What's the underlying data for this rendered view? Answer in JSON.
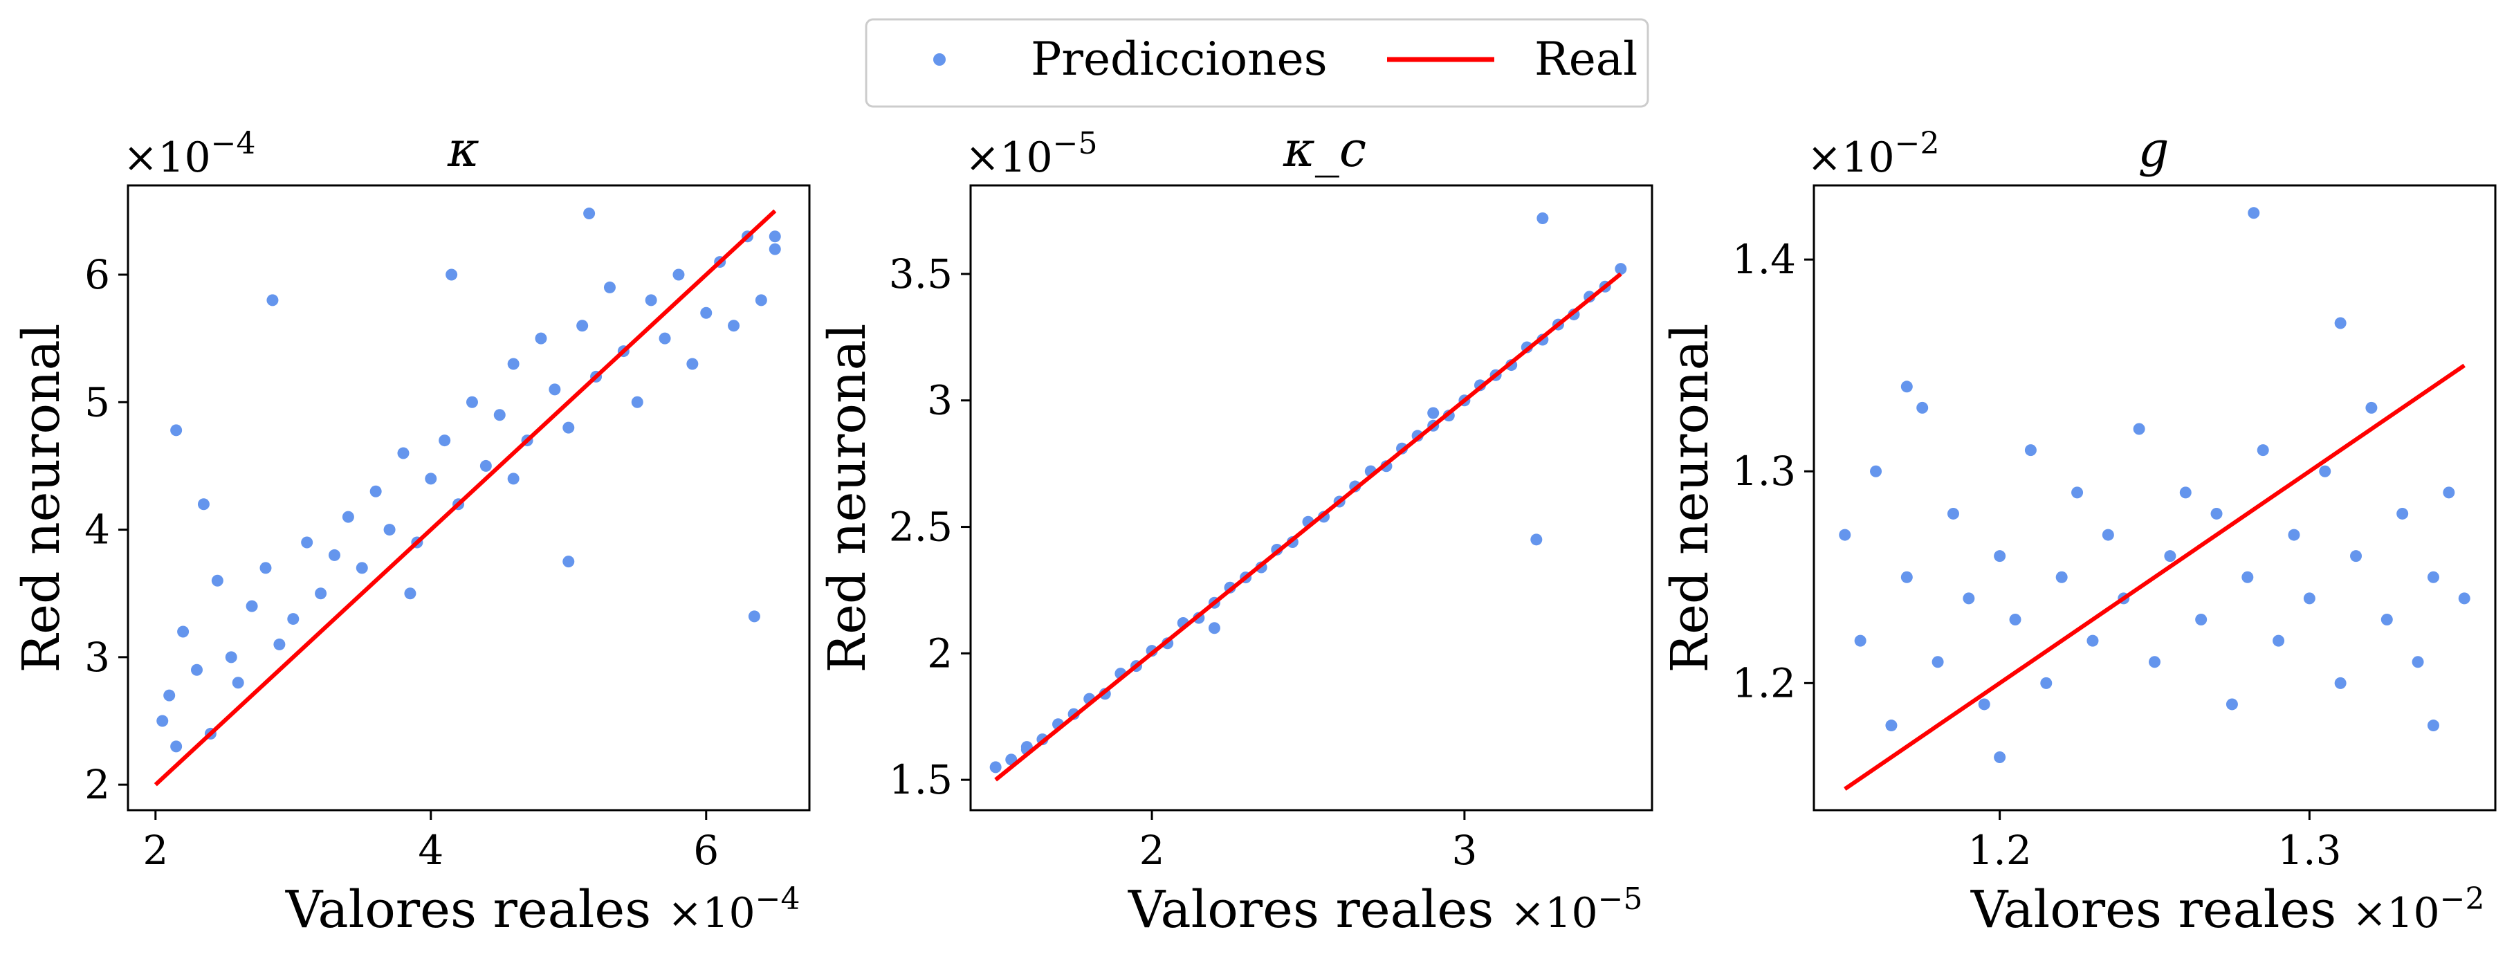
{
  "legend": {
    "entries": [
      {
        "label": "Predicciones",
        "kind": "marker",
        "color": "#6495ed"
      },
      {
        "label": "Real",
        "kind": "line",
        "color": "#ff0000"
      }
    ],
    "position": "top-center"
  },
  "chart_data": [
    {
      "type": "scatter",
      "title": "κ",
      "xlabel": "Valores reales",
      "ylabel": "Red neuronal",
      "x_offset_label": "×10",
      "x_offset_exp": "−4",
      "y_offset_label": "×10",
      "y_offset_exp": "−4",
      "xlim": [
        1.8,
        6.75
      ],
      "ylim": [
        1.8,
        6.7
      ],
      "xticks": [
        2,
        4,
        6
      ],
      "yticks": [
        2,
        3,
        4,
        5,
        6
      ],
      "grid": false,
      "series": [
        {
          "name": "Predicciones",
          "kind": "scatter",
          "color": "#6495ed",
          "x": [
            2.05,
            2.1,
            2.15,
            2.2,
            2.3,
            2.4,
            2.45,
            2.55,
            2.6,
            2.7,
            2.8,
            2.9,
            3.0,
            3.1,
            3.2,
            3.3,
            3.4,
            3.5,
            3.6,
            3.7,
            3.8,
            3.9,
            4.0,
            4.1,
            4.2,
            4.3,
            4.4,
            4.5,
            4.6,
            4.7,
            4.8,
            4.9,
            5.0,
            5.1,
            5.2,
            5.3,
            5.4,
            5.5,
            5.6,
            5.7,
            5.8,
            5.9,
            6.0,
            6.1,
            6.2,
            6.3,
            6.4,
            6.5,
            2.15,
            2.35,
            2.85,
            4.15,
            5.15,
            6.35,
            5.0,
            6.5,
            4.6,
            3.85
          ],
          "y": [
            2.5,
            2.7,
            2.3,
            3.2,
            2.9,
            2.4,
            3.6,
            3.0,
            2.8,
            3.4,
            3.7,
            3.1,
            3.3,
            3.9,
            3.5,
            3.8,
            4.1,
            3.7,
            4.3,
            4.0,
            4.6,
            3.9,
            4.4,
            4.7,
            4.2,
            5.0,
            4.5,
            4.9,
            5.3,
            4.7,
            5.5,
            5.1,
            4.8,
            5.6,
            5.2,
            5.9,
            5.4,
            5.0,
            5.8,
            5.5,
            6.0,
            5.3,
            5.7,
            6.1,
            5.6,
            6.3,
            5.8,
            6.2,
            4.78,
            4.2,
            5.8,
            6.0,
            6.48,
            3.32,
            3.75,
            6.3,
            4.4,
            3.5
          ]
        },
        {
          "name": "Real",
          "kind": "line",
          "color": "#ff0000",
          "x": [
            2.0,
            6.5
          ],
          "y": [
            2.0,
            6.5
          ]
        }
      ]
    },
    {
      "type": "scatter",
      "title": "κ_c",
      "xlabel": "Valores reales",
      "ylabel": "Red neuronal",
      "x_offset_label": "×10",
      "x_offset_exp": "−5",
      "y_offset_label": "×10",
      "y_offset_exp": "−5",
      "xlim": [
        1.42,
        3.6
      ],
      "ylim": [
        1.38,
        3.85
      ],
      "xticks": [
        2,
        3
      ],
      "yticks": [
        1.5,
        2.0,
        2.5,
        3.0,
        3.5
      ],
      "grid": false,
      "series": [
        {
          "name": "Predicciones",
          "kind": "scatter",
          "color": "#6495ed",
          "x": [
            1.5,
            1.55,
            1.6,
            1.65,
            1.7,
            1.75,
            1.8,
            1.85,
            1.9,
            1.95,
            2.0,
            2.05,
            2.1,
            2.15,
            2.2,
            2.25,
            2.3,
            2.35,
            2.4,
            2.45,
            2.5,
            2.55,
            2.6,
            2.65,
            2.7,
            2.75,
            2.8,
            2.85,
            2.9,
            2.95,
            3.0,
            3.05,
            3.1,
            3.15,
            3.2,
            3.25,
            3.3,
            3.35,
            3.4,
            3.45,
            3.5,
            3.25,
            3.23,
            1.6,
            2.2,
            2.9
          ],
          "y": [
            1.55,
            1.58,
            1.62,
            1.66,
            1.72,
            1.76,
            1.82,
            1.84,
            1.92,
            1.95,
            2.01,
            2.04,
            2.12,
            2.14,
            2.2,
            2.26,
            2.3,
            2.34,
            2.41,
            2.44,
            2.52,
            2.54,
            2.6,
            2.66,
            2.72,
            2.74,
            2.81,
            2.86,
            2.9,
            2.94,
            3.0,
            3.06,
            3.1,
            3.14,
            3.21,
            3.24,
            3.3,
            3.34,
            3.41,
            3.45,
            3.52,
            3.72,
            2.45,
            1.63,
            2.1,
            2.95
          ]
        },
        {
          "name": "Real",
          "kind": "line",
          "color": "#ff0000",
          "x": [
            1.5,
            3.5
          ],
          "y": [
            1.5,
            3.5
          ]
        }
      ]
    },
    {
      "type": "scatter",
      "title": "g",
      "xlabel": "Valores reales",
      "ylabel": "Red neuronal",
      "x_offset_label": "×10",
      "x_offset_exp": "−2",
      "y_offset_label": "×10",
      "y_offset_exp": "−2",
      "xlim": [
        1.14,
        1.36
      ],
      "ylim": [
        1.14,
        1.435
      ],
      "xticks": [
        1.2,
        1.3
      ],
      "yticks": [
        1.2,
        1.3,
        1.4
      ],
      "grid": false,
      "series": [
        {
          "name": "Predicciones",
          "kind": "scatter",
          "color": "#6495ed",
          "x": [
            1.15,
            1.155,
            1.16,
            1.165,
            1.17,
            1.175,
            1.18,
            1.185,
            1.19,
            1.195,
            1.2,
            1.205,
            1.21,
            1.215,
            1.22,
            1.225,
            1.23,
            1.235,
            1.24,
            1.245,
            1.25,
            1.255,
            1.26,
            1.265,
            1.27,
            1.275,
            1.28,
            1.285,
            1.29,
            1.295,
            1.3,
            1.305,
            1.31,
            1.315,
            1.32,
            1.325,
            1.33,
            1.335,
            1.34,
            1.345,
            1.35,
            1.282,
            1.17,
            1.2,
            1.31,
            1.34
          ],
          "y": [
            1.27,
            1.22,
            1.3,
            1.18,
            1.25,
            1.33,
            1.21,
            1.28,
            1.24,
            1.19,
            1.26,
            1.23,
            1.31,
            1.2,
            1.25,
            1.29,
            1.22,
            1.27,
            1.24,
            1.32,
            1.21,
            1.26,
            1.29,
            1.23,
            1.28,
            1.19,
            1.25,
            1.31,
            1.22,
            1.27,
            1.24,
            1.3,
            1.2,
            1.26,
            1.33,
            1.23,
            1.28,
            1.21,
            1.25,
            1.29,
            1.24,
            1.422,
            1.34,
            1.165,
            1.37,
            1.18
          ]
        },
        {
          "name": "Real",
          "kind": "line",
          "color": "#ff0000",
          "x": [
            1.15,
            1.35
          ],
          "y": [
            1.15,
            1.35
          ]
        }
      ]
    }
  ]
}
